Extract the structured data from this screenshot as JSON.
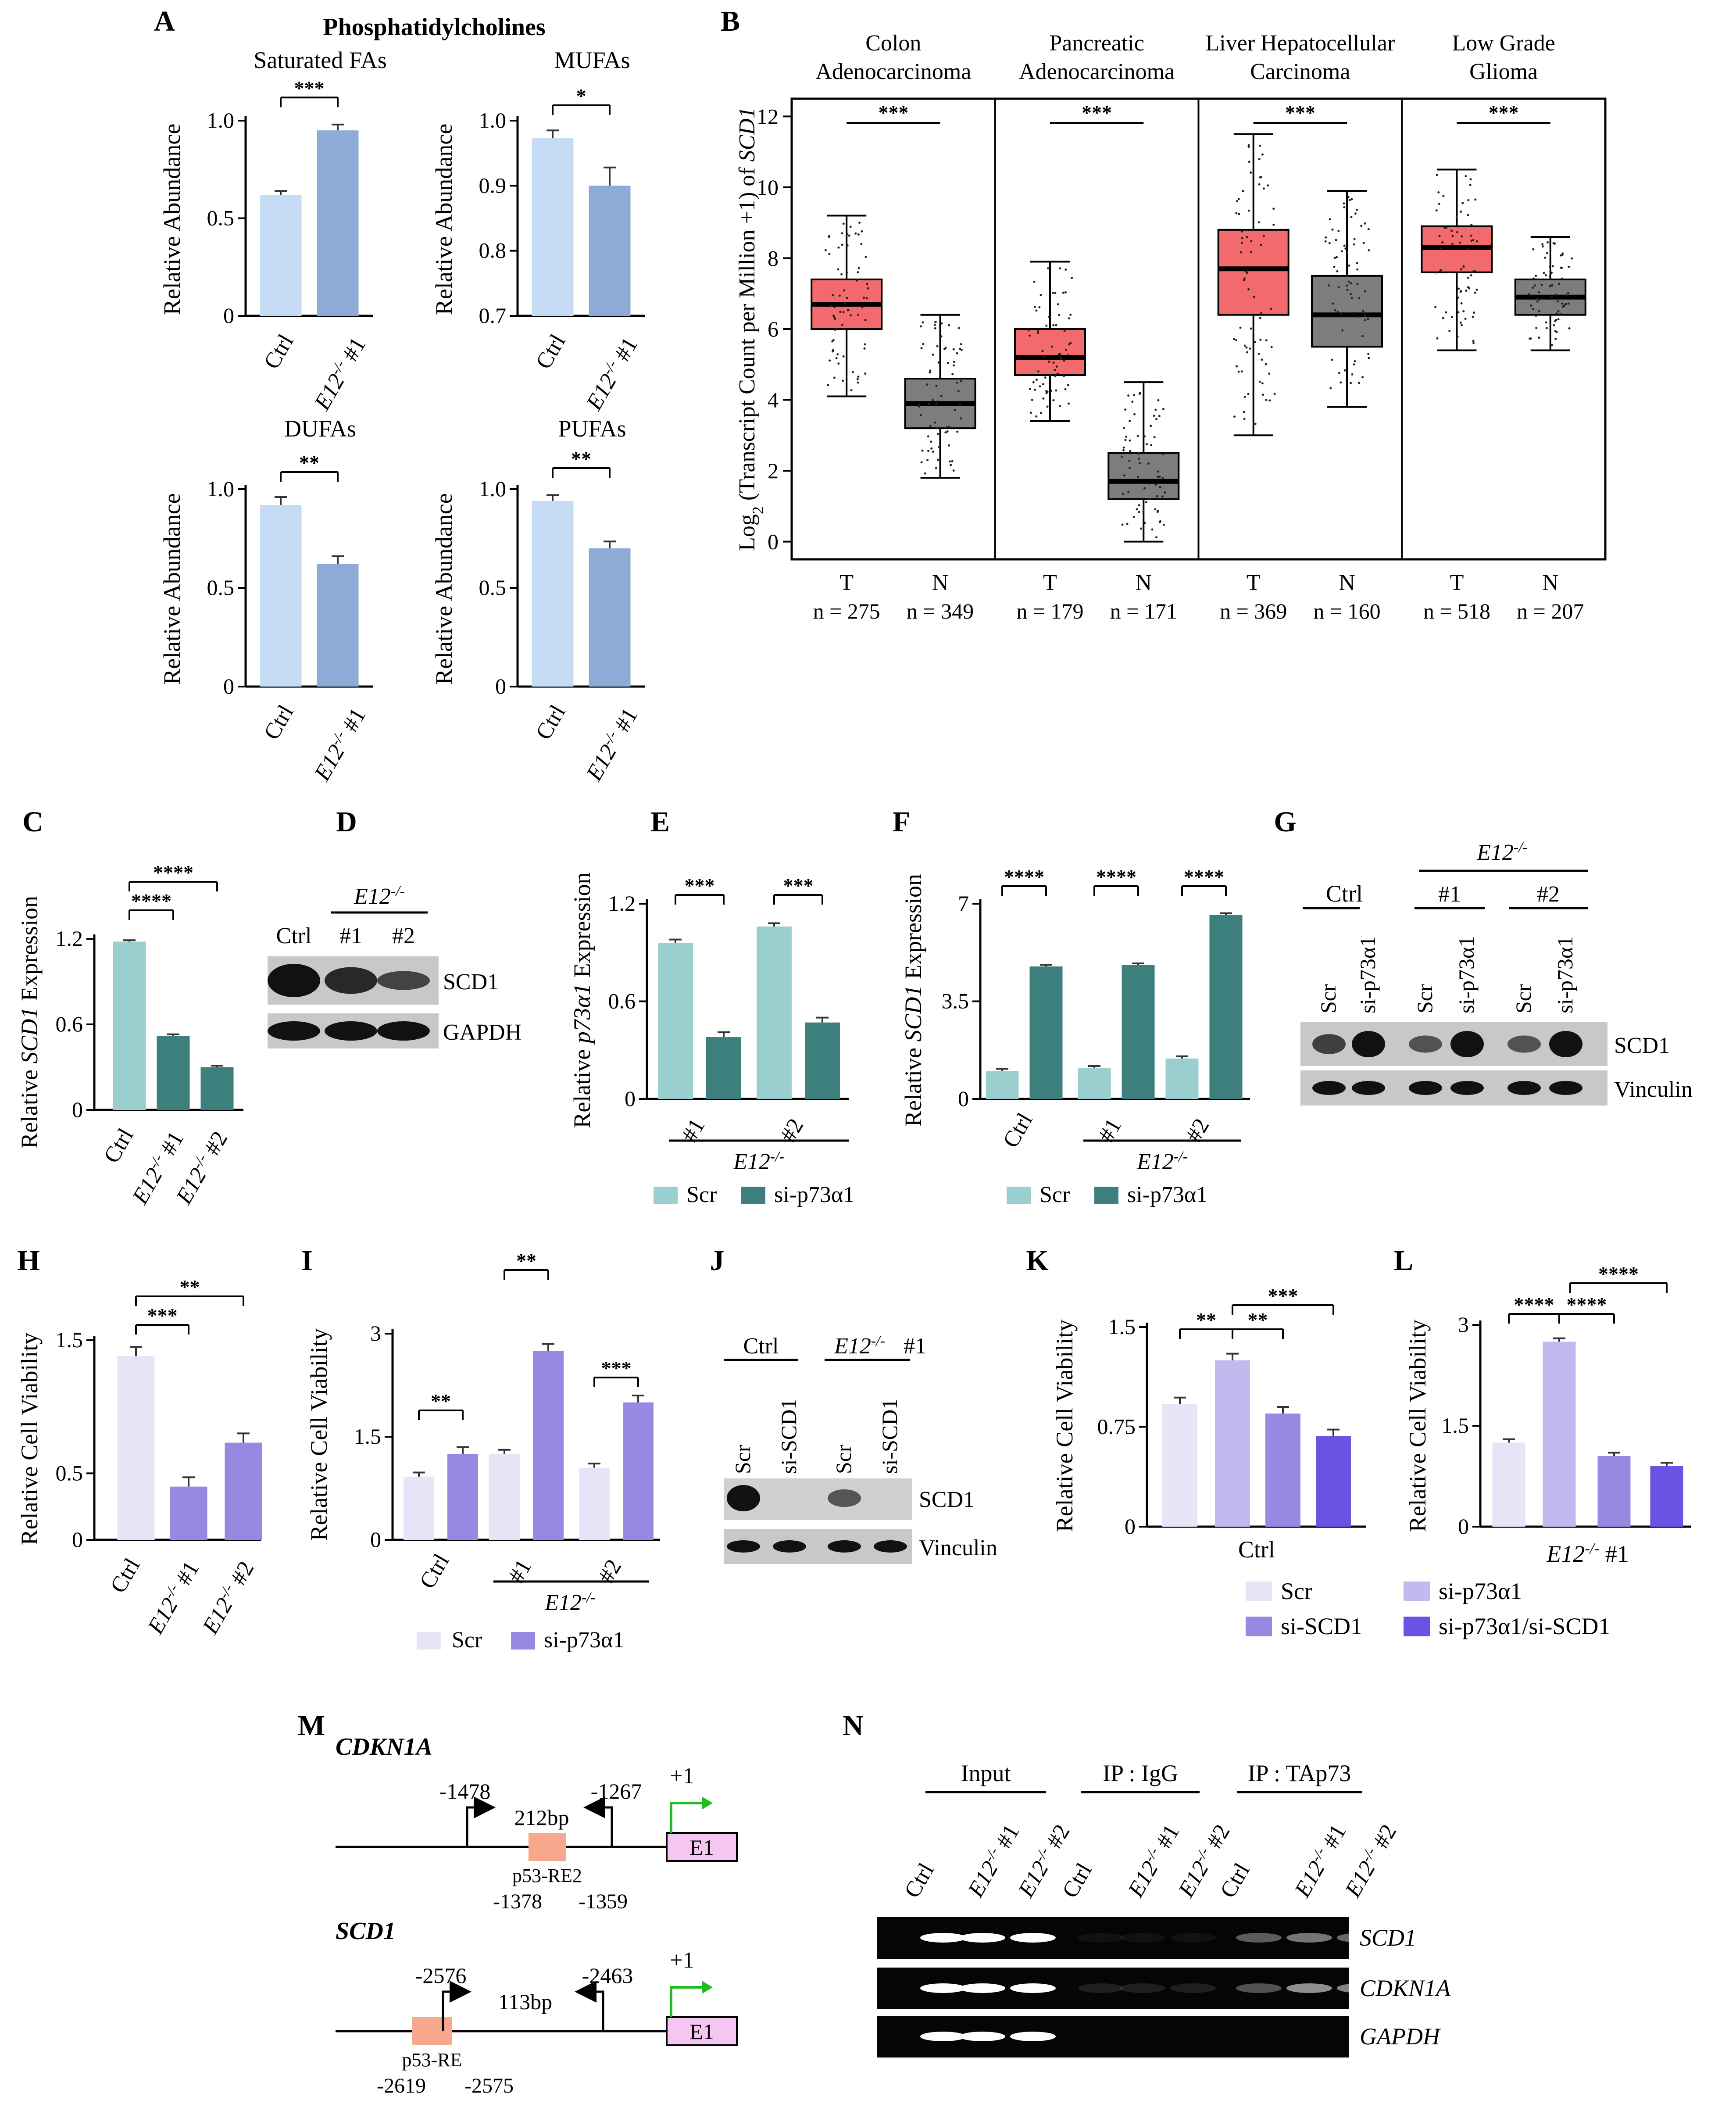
{
  "panel_letters": [
    "A",
    "B",
    "C",
    "D",
    "E",
    "F",
    "G",
    "H",
    "I",
    "J",
    "K",
    "L",
    "M",
    "N"
  ],
  "colors": {
    "light_blue": "#c6dcf5",
    "mid_blue": "#8dabd6",
    "light_teal": "#9bcfcf",
    "dark_teal": "#3d7f7c",
    "lav_light": "#e7e4f7",
    "lav_mid": "#c2b9ee",
    "lav_dark": "#9589e2",
    "purple": "#6a52e3",
    "tumor": "#f26a6c",
    "normal": "#7d7d7d",
    "promoter_box": "#f7a88d",
    "exon_box": "#f5c6f2",
    "tss_arrow": "#22bb22"
  },
  "labels": {
    "rel_abundance": "Relative Abundance",
    "rel_viability": "Relative Cell Viability",
    "e12": "E12",
    "e12_sup": "-/-",
    "e12_1": "#1",
    "e12_2": "#2",
    "ctrl": "Ctrl",
    "scr": "Scr",
    "si_p73": "si-p73α1",
    "si_scd1": "si-SCD1",
    "si_p73_scd1": "si-p73α1/si-SCD1",
    "scd1": "SCD1",
    "gapdh": "GAPDH",
    "vinculin": "Vinculin"
  },
  "panel_a": {
    "title": "Phosphatidylcholines",
    "xticks": [
      "Ctrl",
      "E12-/- #1"
    ],
    "subplots": [
      {
        "title": "Saturated FAs",
        "ylim": [
          0,
          1.0
        ],
        "yticks": [
          "0",
          "0.5",
          "1.0"
        ],
        "values": [
          0.62,
          0.95
        ],
        "errors": [
          0.02,
          0.03
        ],
        "sig": "***"
      },
      {
        "title": "MUFAs",
        "ylim": [
          0.7,
          1.0
        ],
        "yticks": [
          "0.7",
          "0.8",
          "0.9",
          "1.0"
        ],
        "values": [
          0.973,
          0.9
        ],
        "errors": [
          0.012,
          0.028
        ],
        "sig": "*"
      },
      {
        "title": "DUFAs",
        "ylim": [
          0,
          1.0
        ],
        "yticks": [
          "0",
          "0.5",
          "1.0"
        ],
        "values": [
          0.92,
          0.62
        ],
        "errors": [
          0.04,
          0.04
        ],
        "sig": "**"
      },
      {
        "title": "PUFAs",
        "ylim": [
          0,
          1.0
        ],
        "yticks": [
          "0",
          "0.5",
          "1.0"
        ],
        "values": [
          0.94,
          0.7
        ],
        "errors": [
          0.03,
          0.035
        ],
        "sig": "**"
      }
    ]
  },
  "panel_b": {
    "ylabel_parts": [
      "Log",
      "2",
      " (Transcript Count per Million +1) of ",
      "SCD1"
    ],
    "yticks": [
      0,
      2,
      4,
      6,
      8,
      10,
      12
    ],
    "groups": [
      {
        "title": [
          "Colon",
          "Adenocarcinoma"
        ],
        "n": [
          "n = 275",
          "n = 349"
        ],
        "T": {
          "min": 4.1,
          "q1": 6.0,
          "med": 6.7,
          "q3": 7.4,
          "max": 9.2
        },
        "N": {
          "min": 1.8,
          "q1": 3.2,
          "med": 3.9,
          "q3": 4.6,
          "max": 6.4
        }
      },
      {
        "title": [
          "Pancreatic",
          "Adenocarcinoma"
        ],
        "n": [
          "n = 179",
          "n = 171"
        ],
        "T": {
          "min": 3.4,
          "q1": 4.7,
          "med": 5.2,
          "q3": 6.0,
          "max": 7.9
        },
        "N": {
          "min": 0.0,
          "q1": 1.2,
          "med": 1.7,
          "q3": 2.5,
          "max": 4.5
        }
      },
      {
        "title": [
          "Liver Hepatocellular",
          "Carcinoma"
        ],
        "n": [
          "n = 369",
          "n = 160"
        ],
        "T": {
          "min": 3.0,
          "q1": 6.4,
          "med": 7.7,
          "q3": 8.8,
          "max": 11.5
        },
        "N": {
          "min": 3.8,
          "q1": 5.5,
          "med": 6.4,
          "q3": 7.5,
          "max": 9.9
        }
      },
      {
        "title": [
          "Low Grade",
          "Glioma"
        ],
        "n": [
          "n = 518",
          "n = 207"
        ],
        "T": {
          "min": 5.4,
          "q1": 7.6,
          "med": 8.3,
          "q3": 8.9,
          "max": 10.5
        },
        "N": {
          "min": 5.4,
          "q1": 6.4,
          "med": 6.9,
          "q3": 7.4,
          "max": 8.6
        }
      }
    ],
    "tick_T": "T",
    "tick_N": "N",
    "sig": "***"
  },
  "panel_c": {
    "ylabel_prefix": "Relative ",
    "ylabel_gene": "SCD1",
    "ylabel_suffix": " Expression",
    "yticks": [
      "0",
      "0.6",
      "1.2"
    ],
    "values": [
      1.18,
      0.52,
      0.3
    ],
    "sig": [
      "****",
      "****"
    ]
  },
  "panel_d": {
    "lanes": [
      "Ctrl",
      "#1",
      "#2"
    ]
  },
  "panel_e": {
    "ylabel_prefix": "Relative ",
    "ylabel_gene": "p73α1",
    "ylabel_suffix": " Expression",
    "yticks": [
      "0",
      "0.6",
      "1.2"
    ],
    "groups": [
      "#1",
      "#2"
    ],
    "scr": [
      0.96,
      1.06
    ],
    "si": [
      0.38,
      0.47
    ],
    "sig": "***"
  },
  "panel_f": {
    "ylabel_prefix": "Relative ",
    "ylabel_gene": "SCD1",
    "ylabel_suffix": " Expression",
    "yticks": [
      "0",
      "3.5",
      "7"
    ],
    "groups": [
      "Ctrl",
      "#1",
      "#2"
    ],
    "scr": [
      1.0,
      1.1,
      1.45
    ],
    "si": [
      4.75,
      4.8,
      6.6
    ],
    "sig": "****"
  },
  "panel_h": {
    "yticks": [
      "0",
      "0.5",
      "1.5"
    ],
    "values": [
      1.38,
      0.4,
      0.73
    ],
    "sig": [
      "***",
      "**"
    ]
  },
  "panel_i": {
    "yticks": [
      "0",
      "1.5",
      "3"
    ],
    "groups": [
      "Ctrl",
      "#1",
      "#2"
    ],
    "scr": [
      0.92,
      1.25,
      1.05
    ],
    "si": [
      1.25,
      2.75,
      2.0
    ],
    "sig": [
      "**",
      "**",
      "***"
    ]
  },
  "panel_k": {
    "yticks": [
      "0",
      "0.75",
      "1.5"
    ],
    "xlabel": "Ctrl",
    "values": [
      0.92,
      1.25,
      0.85,
      0.68
    ],
    "sig": [
      "**",
      "**",
      "***"
    ]
  },
  "panel_l": {
    "yticks": [
      "0",
      "1.5",
      "3"
    ],
    "xlabel_suffix": "#1",
    "values": [
      1.25,
      2.75,
      1.05,
      0.9
    ],
    "sig": [
      "****",
      "****",
      "****"
    ]
  },
  "panel_m": {
    "gene1": "CDKN1A",
    "gene2": "SCD1",
    "plus1": "+1",
    "exon": "E1",
    "cdkn1a": {
      "p1": "-1478",
      "p2": "-1267",
      "size": "212bp",
      "re": "p53-RE2",
      "re_start": "-1378",
      "re_end": "-1359"
    },
    "scd1": {
      "p1": "-2576",
      "p2": "-2463",
      "size": "113bp",
      "re": "p53-RE",
      "re_start": "-2619",
      "re_end": "-2575"
    }
  },
  "panel_n": {
    "headers": [
      "Input",
      "IP : IgG",
      "IP : TAp73"
    ],
    "rows": [
      "SCD1",
      "CDKN1A",
      "GAPDH"
    ]
  }
}
